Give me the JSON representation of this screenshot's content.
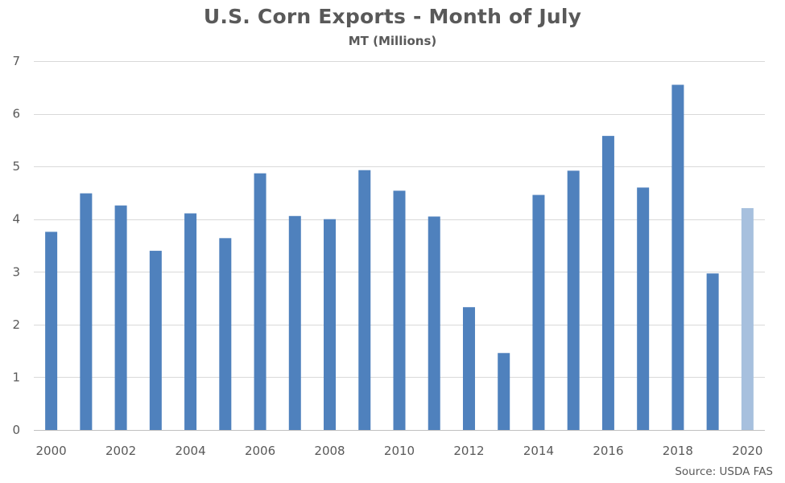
{
  "chart_data": {
    "type": "bar",
    "title": "U.S. Corn Exports - Month of July",
    "subtitle": "MT (Millions)",
    "xlabel": "",
    "ylabel": "",
    "source": "Source: USDA FAS",
    "categories": [
      "2000",
      "2001",
      "2002",
      "2003",
      "2004",
      "2005",
      "2006",
      "2007",
      "2008",
      "2009",
      "2010",
      "2011",
      "2012",
      "2013",
      "2014",
      "2015",
      "2016",
      "2017",
      "2018",
      "2019",
      "2020"
    ],
    "x_tick_labels": [
      "2000",
      "2002",
      "2004",
      "2006",
      "2008",
      "2010",
      "2012",
      "2014",
      "2016",
      "2018",
      "2020"
    ],
    "values": [
      3.76,
      4.49,
      4.26,
      3.4,
      4.11,
      3.64,
      4.87,
      4.06,
      4.0,
      4.93,
      4.54,
      4.05,
      2.33,
      1.46,
      4.46,
      4.92,
      5.58,
      4.6,
      6.55,
      2.97,
      4.21
    ],
    "ylim": [
      0,
      7
    ],
    "y_ticks": [
      0,
      1,
      2,
      3,
      4,
      5,
      6,
      7
    ],
    "grid": true,
    "legend": "none",
    "colors": {
      "bar": "#4f81bd",
      "bar_highlight": "#a7c0de",
      "grid": "#d9d9d9",
      "axis": "#bfbfbf",
      "text": "#595959"
    },
    "highlight_categories": [
      "2020"
    ]
  }
}
